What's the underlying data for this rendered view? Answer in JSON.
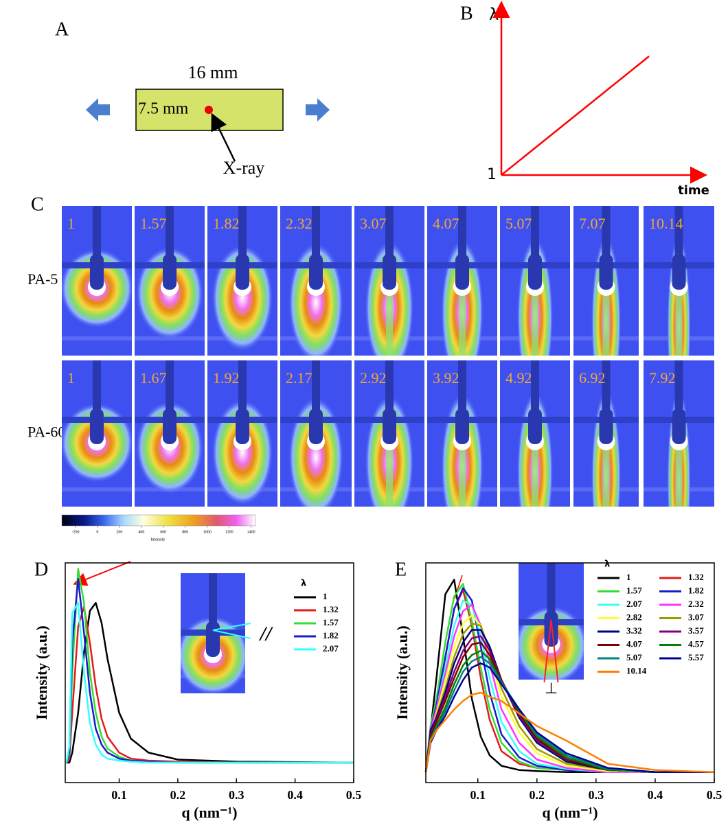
{
  "panel_a": {
    "letter": "A",
    "width_label": "16 mm",
    "height_label": "7.5 mm",
    "beam_label": "X-ray"
  },
  "panel_b": {
    "letter": "B",
    "y_label": "λ",
    "origin_label": "1",
    "x_label": "time"
  },
  "panel_c": {
    "letter": "C",
    "rows": [
      {
        "name": "PA-5",
        "labels": [
          "1",
          "1.57",
          "1.82",
          "2.32",
          "3.07",
          "4.07",
          "5.07",
          "7.07",
          "10.14"
        ]
      },
      {
        "name": "PA-60",
        "labels": [
          "1",
          "1.67",
          "1.92",
          "2.17",
          "2.92",
          "3.92",
          "4.92",
          "6.92",
          "7.92"
        ]
      }
    ],
    "colorbar": {
      "title": "Intensity",
      "lim": [
        -325,
        1440
      ],
      "ticks": [
        -200,
        0,
        200,
        400,
        600,
        800,
        1000,
        1200,
        1400
      ]
    }
  },
  "chart_data": [
    {
      "type": "line",
      "panel": "D",
      "x_label": "q (nm⁻¹)",
      "y_label": "Intensity (a.u.)",
      "legend_title": "λ",
      "annotation": "//",
      "xlim": [
        0.008,
        0.5
      ],
      "ylim": [
        -10,
        100
      ],
      "xticks": [
        0.1,
        0.2,
        0.3,
        0.4,
        0.5
      ],
      "x": [
        0.01,
        0.015,
        0.02,
        0.03,
        0.04,
        0.05,
        0.06,
        0.07,
        0.08,
        0.1,
        0.12,
        0.15,
        0.2,
        0.3,
        0.5
      ],
      "series": [
        {
          "name": "1",
          "color": "#000000",
          "values": [
            0,
            0,
            5,
            25,
            55,
            76,
            80,
            70,
            52,
            25,
            12,
            5,
            1.5,
            0.5,
            0
          ]
        },
        {
          "name": "1.32",
          "color": "#e41a1c",
          "values": [
            0,
            2,
            25,
            68,
            78,
            60,
            38,
            22,
            13,
            5,
            2,
            1,
            0.5,
            0,
            0
          ]
        },
        {
          "name": "1.57",
          "color": "#33dd33",
          "values": [
            0,
            4,
            45,
            97,
            80,
            45,
            25,
            13,
            7,
            3,
            1,
            0.5,
            0,
            0,
            0
          ]
        },
        {
          "name": "1.82",
          "color": "#1a1acc",
          "values": [
            0,
            5,
            60,
            92,
            65,
            35,
            17,
            9,
            5,
            2,
            1,
            0.5,
            0,
            0,
            0
          ]
        },
        {
          "name": "2.07",
          "color": "#33ffff",
          "values": [
            0,
            8,
            75,
            80,
            45,
            20,
            9,
            4,
            2,
            1,
            0.5,
            0,
            0,
            0,
            0
          ]
        }
      ]
    },
    {
      "type": "line",
      "panel": "E",
      "x_label": "q (nm⁻¹)",
      "y_label": "Intensity (a.u.)",
      "legend_title": "λ",
      "annotation": "⊥",
      "xlim": [
        0.012,
        0.5
      ],
      "ylim": [
        -5,
        100
      ],
      "xticks": [
        0.1,
        0.2,
        0.3,
        0.4,
        0.5
      ],
      "x": [
        0.012,
        0.02,
        0.03,
        0.045,
        0.06,
        0.075,
        0.09,
        0.105,
        0.12,
        0.14,
        0.17,
        0.2,
        0.25,
        0.32,
        0.4,
        0.5
      ],
      "series": [
        {
          "name": "1",
          "color": "#000000",
          "values": [
            0,
            20,
            45,
            85,
            92,
            65,
            35,
            17,
            8,
            3,
            1,
            0.5,
            0,
            0,
            0,
            0
          ]
        },
        {
          "name": "1.32",
          "color": "#e41a1c",
          "values": [
            0,
            18,
            30,
            55,
            78,
            87,
            70,
            45,
            25,
            10,
            4,
            2,
            1,
            0,
            0,
            0
          ]
        },
        {
          "name": "1.57",
          "color": "#33dd33",
          "values": [
            0,
            22,
            35,
            62,
            84,
            90,
            72,
            50,
            30,
            14,
            5,
            2,
            1,
            0,
            0,
            0
          ]
        },
        {
          "name": "1.82",
          "color": "#1a1acc",
          "values": [
            0,
            20,
            32,
            55,
            78,
            88,
            82,
            60,
            38,
            18,
            7,
            3,
            1,
            0,
            0,
            0
          ]
        },
        {
          "name": "2.07",
          "color": "#33ffff",
          "values": [
            0,
            20,
            30,
            50,
            70,
            82,
            80,
            65,
            45,
            24,
            10,
            4,
            1.5,
            0,
            0,
            0
          ]
        },
        {
          "name": "2.32",
          "color": "#ff33ff",
          "values": [
            0,
            20,
            30,
            47,
            65,
            77,
            80,
            70,
            52,
            30,
            14,
            6,
            2,
            0,
            0,
            0
          ]
        },
        {
          "name": "2.82",
          "color": "#ffff33",
          "values": [
            0,
            18,
            28,
            44,
            60,
            71,
            75,
            70,
            56,
            36,
            19,
            9,
            3,
            0.5,
            0,
            0
          ]
        },
        {
          "name": "3.07",
          "color": "#999900",
          "values": [
            0,
            18,
            27,
            40,
            55,
            66,
            71,
            70,
            58,
            40,
            22,
            11,
            4,
            1,
            0,
            0
          ]
        },
        {
          "name": "3.32",
          "color": "#000080",
          "values": [
            0,
            20,
            26,
            38,
            52,
            62,
            68,
            68,
            60,
            44,
            26,
            14,
            5,
            1,
            0,
            0
          ]
        },
        {
          "name": "3.57",
          "color": "#800080",
          "values": [
            0,
            18,
            25,
            36,
            48,
            58,
            64,
            65,
            58,
            44,
            27,
            15,
            6,
            1,
            0,
            0
          ]
        },
        {
          "name": "4.07",
          "color": "#800000",
          "values": [
            0,
            17,
            24,
            34,
            45,
            55,
            61,
            62,
            56,
            44,
            28,
            16,
            6,
            1,
            0,
            0
          ]
        },
        {
          "name": "4.57",
          "color": "#008000",
          "values": [
            0,
            16,
            22,
            31,
            42,
            51,
            56,
            58,
            54,
            43,
            29,
            17,
            7,
            1,
            0,
            0
          ]
        },
        {
          "name": "5.07",
          "color": "#008080",
          "values": [
            0,
            15,
            21,
            29,
            39,
            48,
            53,
            55,
            52,
            43,
            30,
            18,
            8,
            1.5,
            0,
            0
          ]
        },
        {
          "name": "5.57",
          "color": "#000099",
          "values": [
            0,
            14,
            20,
            27,
            36,
            44,
            50,
            52,
            50,
            42,
            30,
            19,
            9,
            2,
            0,
            0
          ]
        },
        {
          "name": "10.14",
          "color": "#ff8000",
          "values": [
            0,
            15,
            20,
            25,
            30,
            34,
            37,
            38,
            36,
            34,
            28,
            22,
            15,
            4,
            1,
            0
          ]
        }
      ]
    }
  ]
}
